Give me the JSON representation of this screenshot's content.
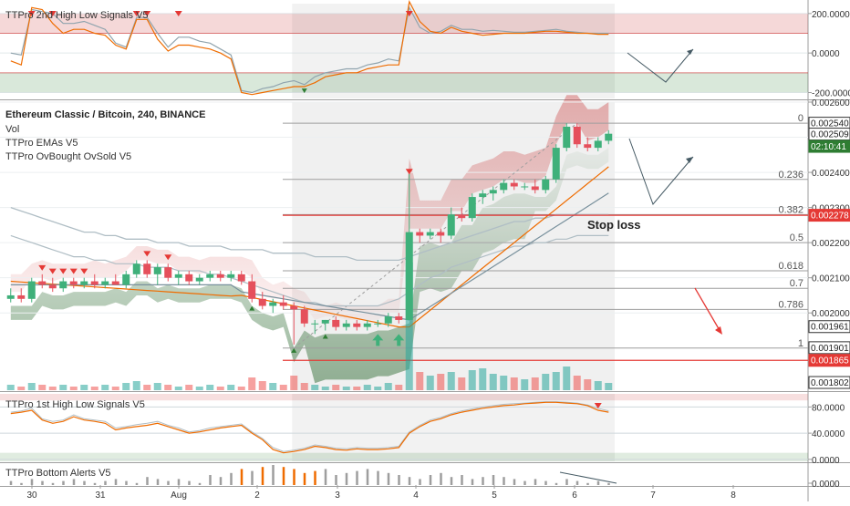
{
  "chart_data": {
    "type": "candlestick",
    "symbol_title": "Ethereum Classic / Bitcoin, 240, BINANCE",
    "indicator_legend": [
      "Vol",
      "TTPro EMAs V5",
      "TTPro OvBought OvSold V5"
    ],
    "x_labels": [
      "30",
      "31",
      "Aug",
      "2",
      "3",
      "4",
      "5",
      "6",
      "7",
      "8"
    ],
    "main_price_ticks": [
      "0.002600",
      "0.002500",
      "0.002400",
      "0.002300",
      "0.002200",
      "0.002100",
      "0.002000"
    ],
    "price_ylim": [
      0.00178,
      0.0026
    ],
    "fib_levels": [
      {
        "label": "0",
        "price": 0.00254
      },
      {
        "label": "0.236",
        "price": 0.00238
      },
      {
        "label": "0.382",
        "price": 0.00228
      },
      {
        "label": "0.5",
        "price": 0.0022
      },
      {
        "label": "0.618",
        "price": 0.00212
      },
      {
        "label": "0.7",
        "price": 0.00207
      },
      {
        "label": "0.786",
        "price": 0.00201
      },
      {
        "label": "1",
        "price": 0.0019
      }
    ],
    "price_badges": [
      {
        "text": "0.002540",
        "price": 0.00254,
        "style": "outline"
      },
      {
        "text": "0.002509",
        "price": 0.002509,
        "style": "outline"
      },
      {
        "text": "02:10:41",
        "price": 0.002474,
        "style": "green"
      },
      {
        "text": "0.002278",
        "price": 0.002278,
        "style": "red"
      },
      {
        "text": "0.001961",
        "price": 0.001961,
        "style": "outline"
      },
      {
        "text": "0.001901",
        "price": 0.001901,
        "style": "outline"
      },
      {
        "text": "0.001865",
        "price": 0.001865,
        "style": "red"
      },
      {
        "text": "0.001802",
        "price": 0.001802,
        "style": "outline"
      }
    ],
    "stop_loss_label": "Stop loss",
    "candles": [
      {
        "o": 0.00204,
        "h": 0.00207,
        "l": 0.00203,
        "c": 0.00205
      },
      {
        "o": 0.00205,
        "h": 0.00207,
        "l": 0.00203,
        "c": 0.00204
      },
      {
        "o": 0.00204,
        "h": 0.0021,
        "l": 0.00203,
        "c": 0.00209
      },
      {
        "o": 0.00209,
        "h": 0.00211,
        "l": 0.00207,
        "c": 0.00208
      },
      {
        "o": 0.00208,
        "h": 0.0021,
        "l": 0.00206,
        "c": 0.00207
      },
      {
        "o": 0.00207,
        "h": 0.0021,
        "l": 0.00206,
        "c": 0.00209
      },
      {
        "o": 0.00209,
        "h": 0.0021,
        "l": 0.00207,
        "c": 0.00208
      },
      {
        "o": 0.00208,
        "h": 0.0021,
        "l": 0.00207,
        "c": 0.00209
      },
      {
        "o": 0.00209,
        "h": 0.00211,
        "l": 0.00207,
        "c": 0.00208
      },
      {
        "o": 0.00208,
        "h": 0.0021,
        "l": 0.00207,
        "c": 0.00209
      },
      {
        "o": 0.00209,
        "h": 0.00211,
        "l": 0.00208,
        "c": 0.00208
      },
      {
        "o": 0.00208,
        "h": 0.00212,
        "l": 0.00207,
        "c": 0.00211
      },
      {
        "o": 0.00211,
        "h": 0.00215,
        "l": 0.0021,
        "c": 0.00214
      },
      {
        "o": 0.00214,
        "h": 0.00215,
        "l": 0.0021,
        "c": 0.00211
      },
      {
        "o": 0.00211,
        "h": 0.00214,
        "l": 0.00208,
        "c": 0.00213
      },
      {
        "o": 0.00213,
        "h": 0.00214,
        "l": 0.00209,
        "c": 0.0021
      },
      {
        "o": 0.0021,
        "h": 0.00212,
        "l": 0.00208,
        "c": 0.00211
      },
      {
        "o": 0.00211,
        "h": 0.00212,
        "l": 0.00208,
        "c": 0.00209
      },
      {
        "o": 0.00209,
        "h": 0.00211,
        "l": 0.00208,
        "c": 0.0021
      },
      {
        "o": 0.0021,
        "h": 0.00212,
        "l": 0.00209,
        "c": 0.00211
      },
      {
        "o": 0.00211,
        "h": 0.00212,
        "l": 0.00209,
        "c": 0.0021
      },
      {
        "o": 0.0021,
        "h": 0.00212,
        "l": 0.00209,
        "c": 0.00211
      },
      {
        "o": 0.00211,
        "h": 0.00212,
        "l": 0.00208,
        "c": 0.00209
      },
      {
        "o": 0.00209,
        "h": 0.00211,
        "l": 0.00203,
        "c": 0.00204
      },
      {
        "o": 0.00204,
        "h": 0.00206,
        "l": 0.00201,
        "c": 0.00202
      },
      {
        "o": 0.00202,
        "h": 0.00204,
        "l": 0.002,
        "c": 0.00203
      },
      {
        "o": 0.00203,
        "h": 0.00205,
        "l": 0.00201,
        "c": 0.00202
      },
      {
        "o": 0.00202,
        "h": 0.00203,
        "l": 0.00191,
        "c": 0.00201
      },
      {
        "o": 0.00201,
        "h": 0.00202,
        "l": 0.00196,
        "c": 0.00197
      },
      {
        "o": 0.00197,
        "h": 0.00198,
        "l": 0.00194,
        "c": 0.00197
      },
      {
        "o": 0.00197,
        "h": 0.00198,
        "l": 0.00195,
        "c": 0.00198
      },
      {
        "o": 0.00198,
        "h": 0.00199,
        "l": 0.00195,
        "c": 0.00196
      },
      {
        "o": 0.00196,
        "h": 0.00198,
        "l": 0.00195,
        "c": 0.00197
      },
      {
        "o": 0.00197,
        "h": 0.00198,
        "l": 0.00195,
        "c": 0.00196
      },
      {
        "o": 0.00196,
        "h": 0.00198,
        "l": 0.00195,
        "c": 0.00197
      },
      {
        "o": 0.00197,
        "h": 0.00198,
        "l": 0.00196,
        "c": 0.00197
      },
      {
        "o": 0.00197,
        "h": 0.002,
        "l": 0.00196,
        "c": 0.00199
      },
      {
        "o": 0.00199,
        "h": 0.002,
        "l": 0.00197,
        "c": 0.00198
      },
      {
        "o": 0.00198,
        "h": 0.0024,
        "l": 0.00198,
        "c": 0.00223
      },
      {
        "o": 0.00223,
        "h": 0.00224,
        "l": 0.0022,
        "c": 0.00222
      },
      {
        "o": 0.00222,
        "h": 0.00224,
        "l": 0.00221,
        "c": 0.00223
      },
      {
        "o": 0.00223,
        "h": 0.00224,
        "l": 0.0022,
        "c": 0.00222
      },
      {
        "o": 0.00222,
        "h": 0.0023,
        "l": 0.00221,
        "c": 0.00228
      },
      {
        "o": 0.00228,
        "h": 0.0023,
        "l": 0.00226,
        "c": 0.00227
      },
      {
        "o": 0.00227,
        "h": 0.00234,
        "l": 0.00226,
        "c": 0.00233
      },
      {
        "o": 0.00233,
        "h": 0.00235,
        "l": 0.00231,
        "c": 0.00234
      },
      {
        "o": 0.00234,
        "h": 0.00236,
        "l": 0.00232,
        "c": 0.00235
      },
      {
        "o": 0.00235,
        "h": 0.00238,
        "l": 0.00234,
        "c": 0.00237
      },
      {
        "o": 0.00237,
        "h": 0.00238,
        "l": 0.00235,
        "c": 0.00236
      },
      {
        "o": 0.00236,
        "h": 0.00237,
        "l": 0.00235,
        "c": 0.00236
      },
      {
        "o": 0.00236,
        "h": 0.00238,
        "l": 0.00234,
        "c": 0.00235
      },
      {
        "o": 0.00235,
        "h": 0.00239,
        "l": 0.00234,
        "c": 0.00238
      },
      {
        "o": 0.00238,
        "h": 0.00248,
        "l": 0.00237,
        "c": 0.00247
      },
      {
        "o": 0.00247,
        "h": 0.00254,
        "l": 0.00246,
        "c": 0.00253
      },
      {
        "o": 0.00253,
        "h": 0.00254,
        "l": 0.00247,
        "c": 0.00248
      },
      {
        "o": 0.00248,
        "h": 0.0025,
        "l": 0.00246,
        "c": 0.00247
      },
      {
        "o": 0.00247,
        "h": 0.0025,
        "l": 0.00246,
        "c": 0.00249
      },
      {
        "o": 0.00249,
        "h": 0.00252,
        "l": 0.00248,
        "c": 0.00251
      }
    ],
    "volume": [
      3,
      2,
      4,
      3,
      2,
      3,
      2,
      3,
      2,
      3,
      2,
      4,
      5,
      3,
      4,
      3,
      2,
      3,
      2,
      3,
      2,
      3,
      2,
      7,
      5,
      4,
      3,
      8,
      4,
      3,
      2,
      3,
      2,
      2,
      3,
      2,
      4,
      3,
      70,
      10,
      8,
      9,
      10,
      7,
      11,
      12,
      9,
      8,
      7,
      6,
      7,
      9,
      10,
      13,
      8,
      6,
      5,
      4
    ],
    "volume_max": 70,
    "panels": {
      "top": {
        "title": "TTPro 2nd High Low Signals V5",
        "ticks": [
          "200.0000",
          "0.0000",
          "-200.0000"
        ],
        "ylim": [
          -230,
          250
        ],
        "white_line": [
          0,
          -10,
          220,
          210,
          200,
          150,
          150,
          160,
          140,
          120,
          50,
          30,
          180,
          180,
          100,
          30,
          80,
          80,
          60,
          50,
          20,
          -10,
          -190,
          -200,
          -180,
          -170,
          -150,
          -140,
          -160,
          -120,
          -100,
          -90,
          -80,
          -80,
          -60,
          -50,
          -30,
          -40,
          230,
          130,
          100,
          110,
          140,
          120,
          120,
          110,
          115,
          110,
          105,
          105,
          110,
          115,
          120,
          110,
          105,
          100,
          100,
          100
        ],
        "orange_line": [
          -40,
          -60,
          230,
          220,
          150,
          100,
          120,
          120,
          100,
          90,
          40,
          20,
          170,
          170,
          70,
          10,
          40,
          40,
          30,
          20,
          0,
          -30,
          -200,
          -210,
          -200,
          -190,
          -180,
          -170,
          -170,
          -150,
          -120,
          -110,
          -100,
          -100,
          -80,
          -70,
          -60,
          -60,
          260,
          160,
          110,
          100,
          130,
          110,
          100,
          90,
          95,
          100,
          100,
          100,
          105,
          110,
          110,
          105,
          100,
          100,
          95,
          95
        ],
        "bands": {
          "upper": [
            100,
            200
          ],
          "lower": [
            -200,
            -100
          ]
        }
      },
      "mid": {
        "title": "TTPro 1st High Low Signals V5",
        "ticks": [
          "80.0000",
          "40.0000",
          "0.0000"
        ],
        "ylim": [
          -3,
          100
        ],
        "orange_line": [
          70,
          72,
          75,
          60,
          55,
          58,
          65,
          60,
          58,
          55,
          45,
          48,
          50,
          52,
          55,
          50,
          45,
          40,
          42,
          45,
          48,
          50,
          52,
          40,
          30,
          15,
          10,
          12,
          15,
          20,
          18,
          15,
          14,
          16,
          15,
          15,
          16,
          18,
          40,
          50,
          58,
          62,
          68,
          72,
          75,
          78,
          80,
          82,
          83,
          85,
          86,
          87,
          87,
          86,
          85,
          82,
          75,
          72
        ],
        "white_line": [
          72,
          74,
          78,
          62,
          58,
          60,
          68,
          62,
          60,
          58,
          48,
          50,
          53,
          55,
          58,
          52,
          48,
          42,
          44,
          48,
          50,
          52,
          54,
          42,
          32,
          18,
          12,
          14,
          17,
          22,
          20,
          17,
          16,
          18,
          17,
          17,
          18,
          20,
          42,
          52,
          60,
          64,
          70,
          74,
          77,
          80,
          82,
          84,
          85,
          86,
          87,
          88,
          88,
          87,
          86,
          83,
          78,
          74
        ]
      },
      "bottom": {
        "title": "TTPro Bottom Alerts V5",
        "ticks": [
          "0.0000"
        ],
        "ylim": [
          0,
          10
        ],
        "bars": [
          2,
          1,
          3,
          2,
          1,
          2,
          3,
          2,
          1,
          2,
          3,
          2,
          1,
          4,
          3,
          2,
          3,
          2,
          1,
          5,
          4,
          6,
          8,
          7,
          9,
          10,
          9,
          8,
          6,
          7,
          8,
          5,
          6,
          7,
          8,
          7,
          6,
          5,
          4,
          3,
          5,
          6,
          4,
          5,
          3,
          4,
          5,
          4,
          3,
          2,
          3,
          2,
          1,
          3,
          2,
          1,
          2,
          1
        ],
        "highlight_bars": [
          22,
          24,
          26,
          27,
          28,
          29
        ]
      }
    }
  }
}
